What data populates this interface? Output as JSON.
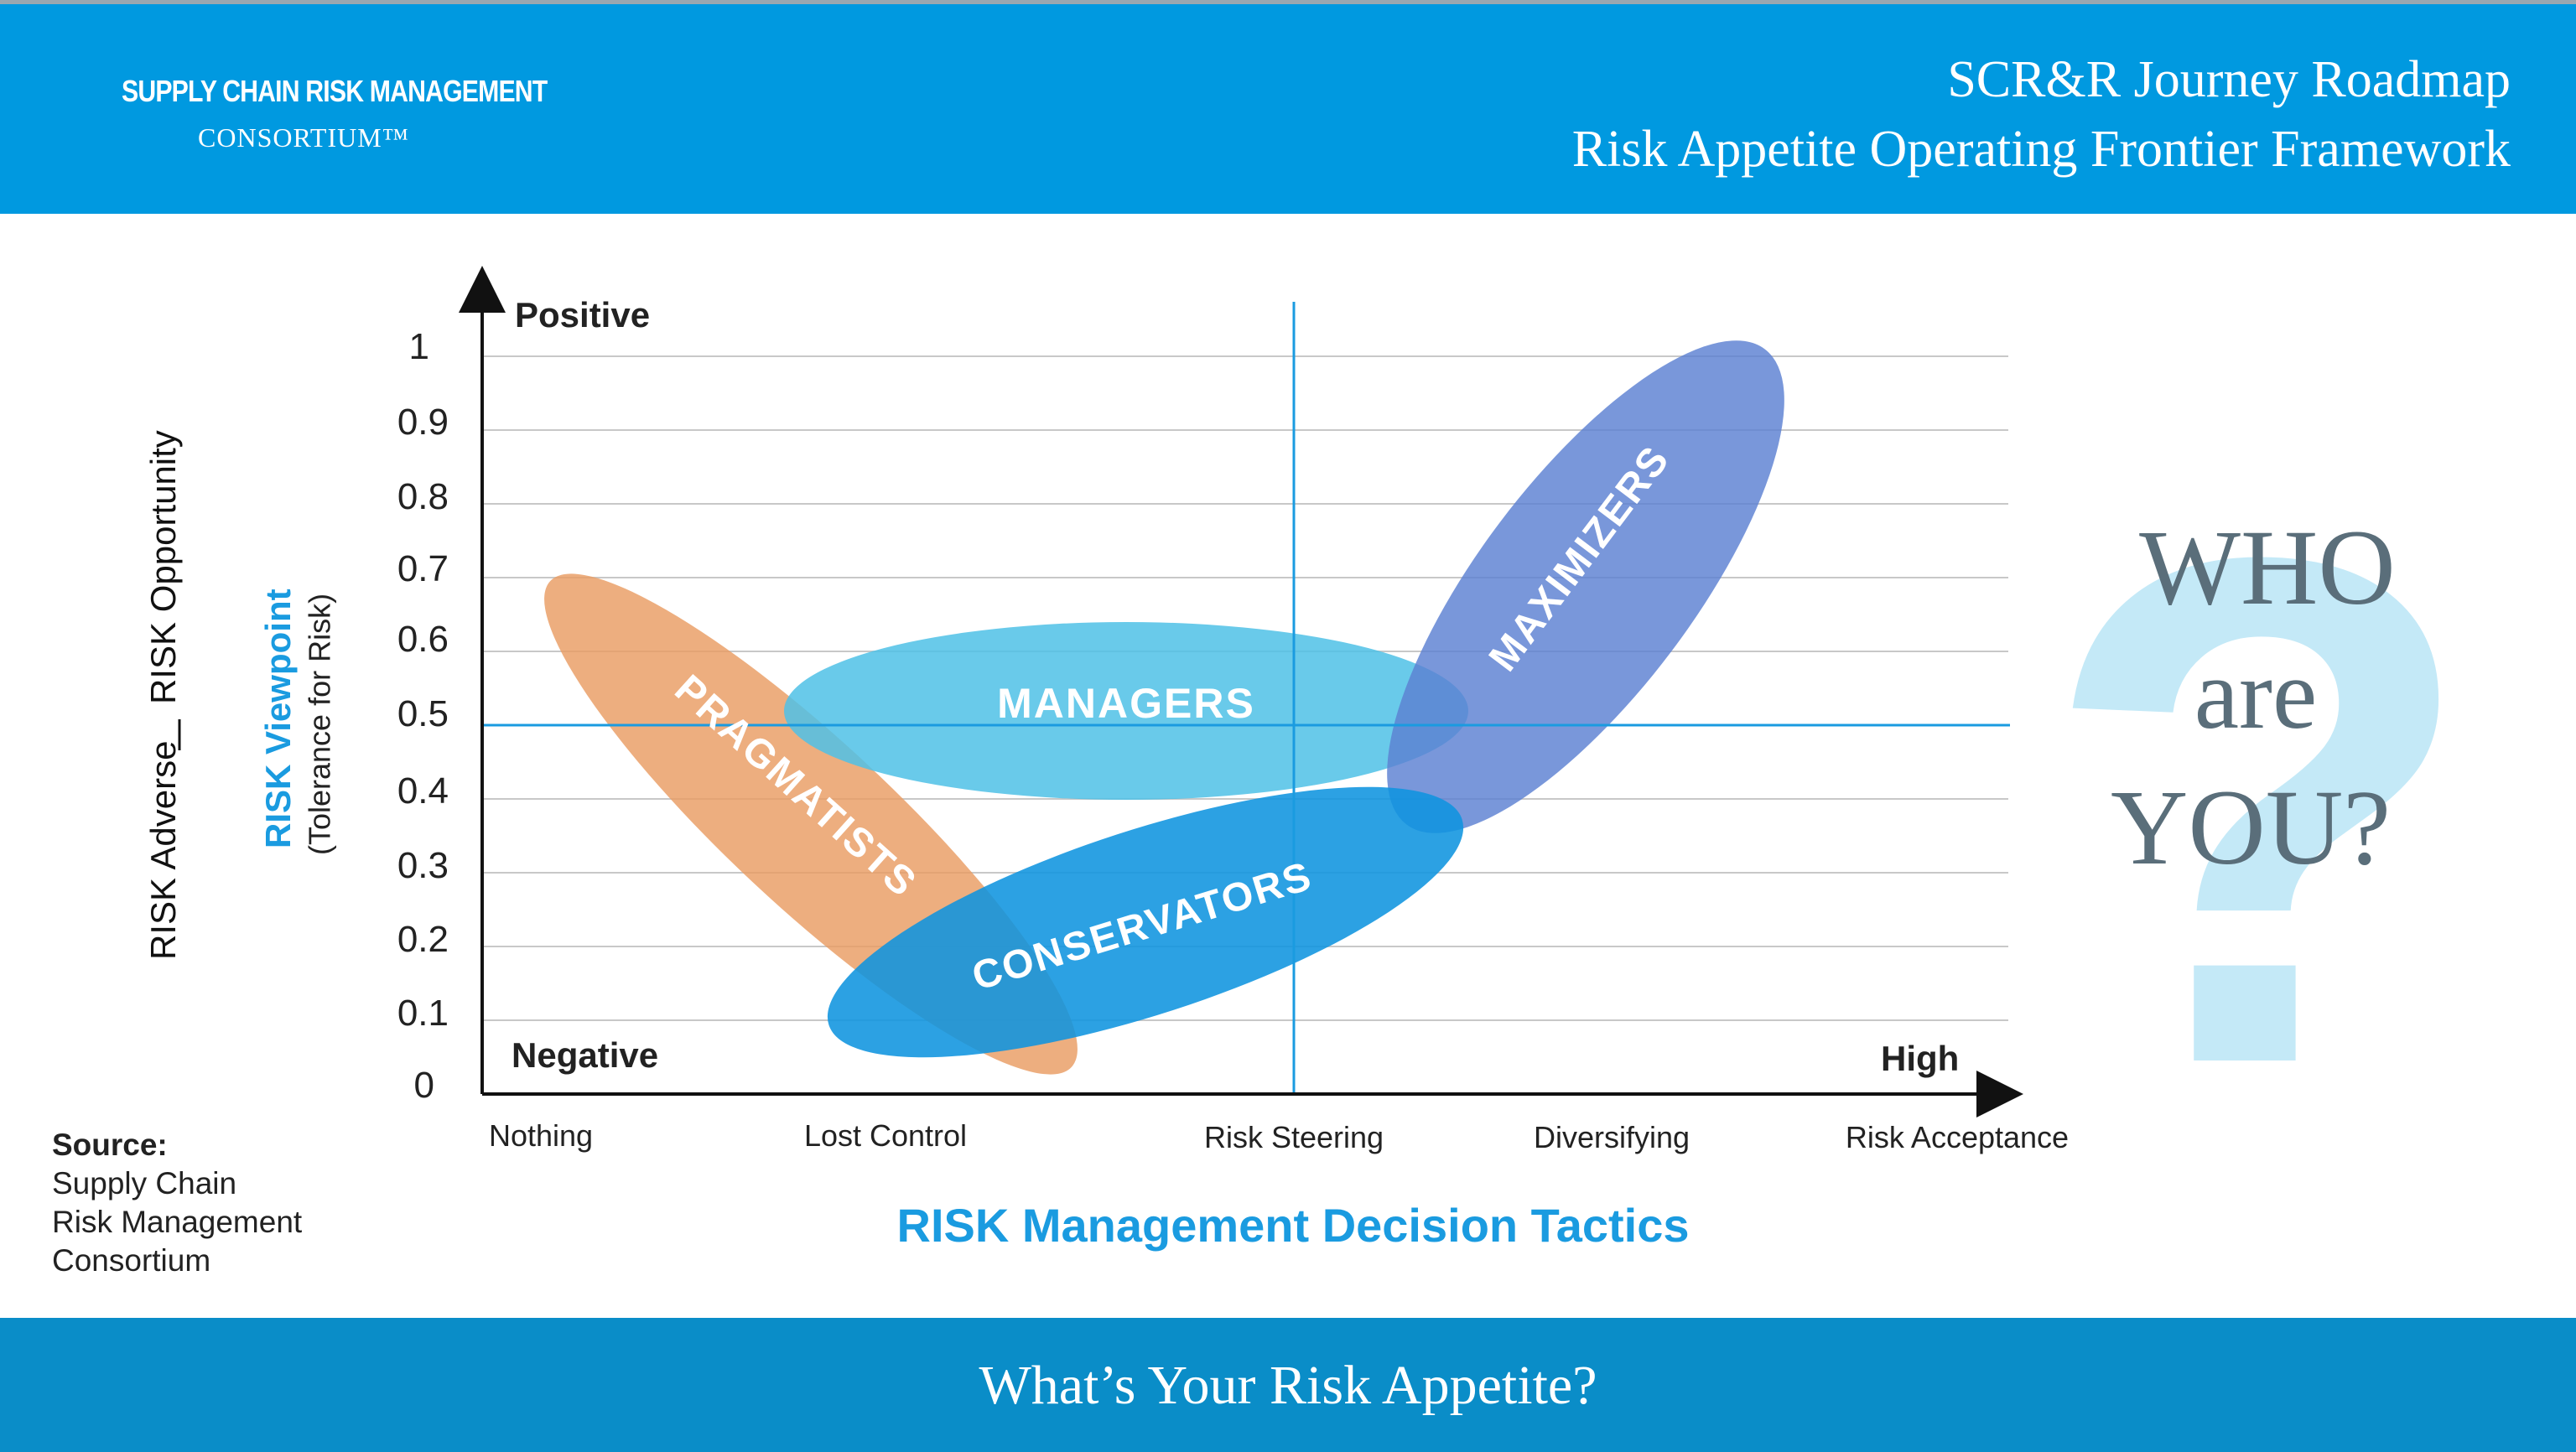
{
  "header": {
    "logo_line1": "SUPPLY CHAIN RISK MANAGEMENT",
    "logo_line2": "CONSORTIUM™",
    "title_line1": "SCR&R Journey Roadmap",
    "title_line2": "Risk Appetite Operating Frontier Framework"
  },
  "chart": {
    "y_ticks": [
      "0",
      "0.1",
      "0.2",
      "0.3",
      "0.4",
      "0.5",
      "0.6",
      "0.7",
      "0.8",
      "0.9",
      "1"
    ],
    "y_top_label": "Positive",
    "y_bottom_label": "Negative",
    "x_right_label": "High",
    "x_ticks": [
      "Nothing",
      "Lost Control",
      "Risk Steering",
      "Diversifying",
      "Risk Acceptance"
    ],
    "x_axis_title": "RISK Management Decision Tactics",
    "y_title_main": "RISK Viewpoint",
    "y_title_sub": "(Tolerance for Risk)",
    "y_side_left": "RISK Adverse",
    "y_side_right": "RISK Opportunity",
    "groups": {
      "pragmatists": "PRAGMATISTS",
      "managers": "MANAGERS",
      "conservators": "CONSERVATORS",
      "maximizers": "MAXIMIZERS"
    }
  },
  "colors": {
    "header_blue": "#0099e0",
    "footer_blue": "#0a8dc8",
    "pragmatists": "#e99c63",
    "managers": "#4fc1e6",
    "conservators": "#0f94df",
    "maximizers": "#5c80d2",
    "accent_text": "#1a9be0"
  },
  "who": {
    "line1": "WHO",
    "line2": "are",
    "line3": "YOU?",
    "glyph": "?"
  },
  "source": {
    "label": "Source:",
    "line1": "Supply Chain",
    "line2": "Risk Management",
    "line3": "Consortium"
  },
  "footer": {
    "text": "What’s Your Risk Appetite?"
  }
}
